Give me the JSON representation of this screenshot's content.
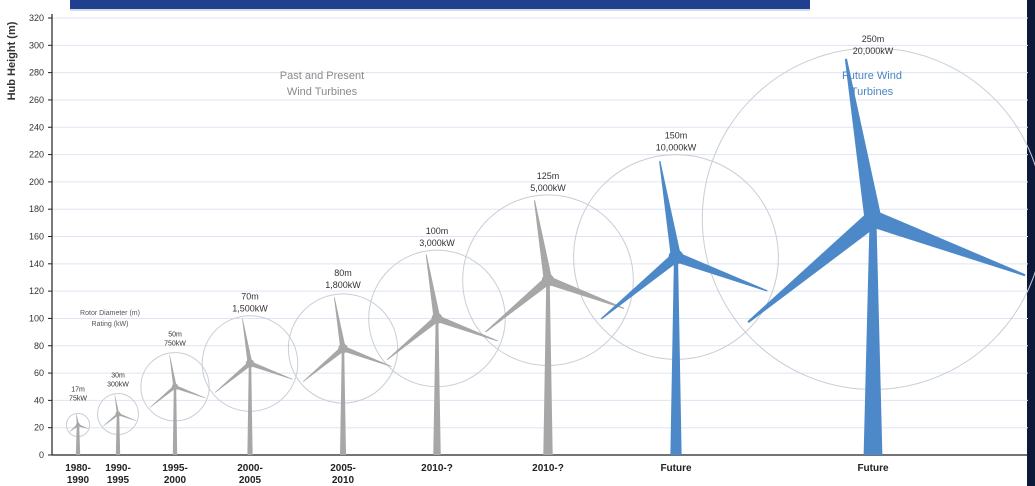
{
  "chart_data": {
    "type": "scatter",
    "ylabel": "Hub Height (m)",
    "ylim": [
      0,
      320
    ],
    "yticks": [
      0,
      20,
      40,
      60,
      80,
      100,
      120,
      140,
      160,
      180,
      200,
      220,
      240,
      260,
      280,
      300,
      320
    ],
    "grid": true,
    "legend_caption": [
      "Rotor Diameter (m)",
      "Rating (kW)"
    ],
    "section_labels": [
      {
        "text": [
          "Past and Present",
          "Wind Turbines"
        ],
        "color": "#8a8a8a"
      },
      {
        "text": [
          "Future Wind",
          "Turbines"
        ],
        "color": "#4a86c5"
      }
    ],
    "turbines": [
      {
        "period": [
          "1980-",
          "1990"
        ],
        "hub_height": 22,
        "rotor_diameter_label": "17m",
        "rating_label": "75kW",
        "future": false
      },
      {
        "period": [
          "1990-",
          "1995"
        ],
        "hub_height": 30,
        "rotor_diameter_label": "30m",
        "rating_label": "300kW",
        "future": false
      },
      {
        "period": [
          "1995-",
          "2000"
        ],
        "hub_height": 50,
        "rotor_diameter_label": "50m",
        "rating_label": "750kW",
        "future": false
      },
      {
        "period": [
          "2000-",
          "2005"
        ],
        "hub_height": 67,
        "rotor_diameter_label": "70m",
        "rating_label": "1,500kW",
        "future": false
      },
      {
        "period": [
          "2005-",
          "2010"
        ],
        "hub_height": 78,
        "rotor_diameter_label": "80m",
        "rating_label": "1,800kW",
        "future": false
      },
      {
        "period": [
          "2010-?"
        ],
        "hub_height": 100,
        "rotor_diameter_label": "100m",
        "rating_label": "3,000kW",
        "future": false
      },
      {
        "period": [
          "2010-?"
        ],
        "hub_height": 128,
        "rotor_diameter_label": "125m",
        "rating_label": "5,000kW",
        "future": false
      },
      {
        "period": [
          "Future"
        ],
        "hub_height": 145,
        "rotor_diameter_label": "150m",
        "rating_label": "10,000kW",
        "future": true
      },
      {
        "period": [
          "Future"
        ],
        "hub_height": 173,
        "rotor_diameter_label": "250m",
        "rating_label": "20,000kW",
        "future": true
      }
    ],
    "colors": {
      "grid": "#dde5f2",
      "axis": "#222222",
      "past_turbine": "#a7a7a7",
      "future_turbine": "#4d89c8",
      "circle": "#c9cdd6"
    }
  }
}
